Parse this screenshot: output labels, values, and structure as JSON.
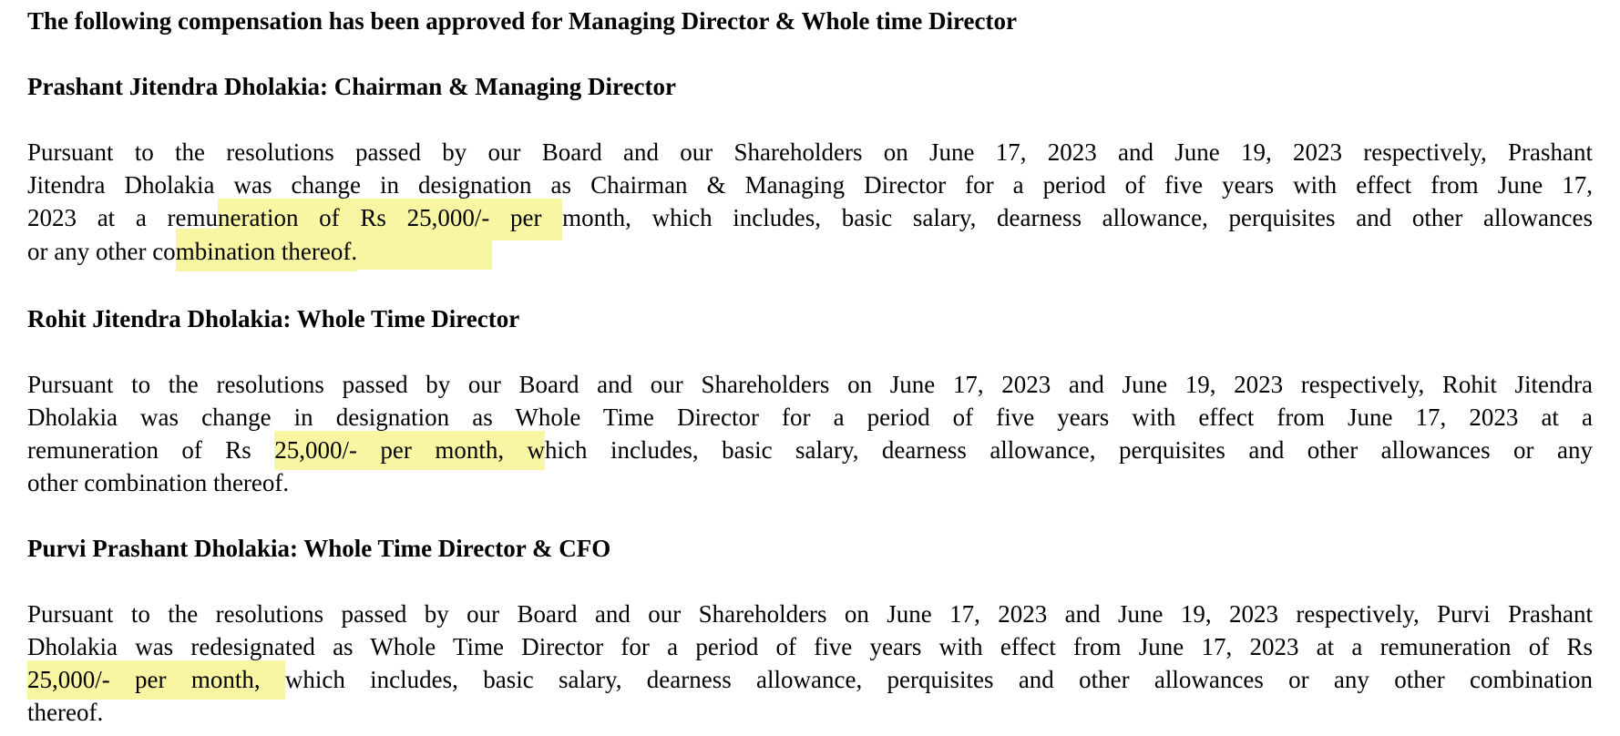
{
  "colors": {
    "page_background": "#ffffff",
    "text": "#000000",
    "highlight": "#f9f6a3"
  },
  "document": {
    "main_heading": "The following compensation has been approved for Managing Director & Whole time Director",
    "sections": [
      {
        "heading": "Prashant Jitendra Dholakia: Chairman & Managing Director",
        "lines": [
          {
            "pre": "Pursuant to the resolutions passed by our Board and our Shareholders on June 17, 2023 and June 19, 2023 respectively, Prashant",
            "mark": "",
            "post": ""
          },
          {
            "pre": "Jitendra Dholakia was change in designation as Chairman & Managing Director for a period of five years with effect from June 17,",
            "mark": "",
            "post": ""
          },
          {
            "pre": "2023 at a remu",
            "mark": "neration of Rs 25,000/- per ",
            "post": "month, which includes, basic salary, dearness allowance, perquisites and other allowances"
          },
          {
            "pre": "or any other co",
            "mark": "mbination thereof.",
            "post": ""
          }
        ]
      },
      {
        "heading": "Rohit Jitendra Dholakia: Whole Time Director",
        "lines": [
          {
            "pre": "Pursuant to the resolutions passed by our Board and our Shareholders on June 17, 2023 and June 19, 2023 respectively, Rohit Jitendra",
            "mark": "",
            "post": ""
          },
          {
            "pre": "Dholakia was change in designation as Whole Time Director for a period of five years with effect from June 17, 2023 at a",
            "mark": "",
            "post": ""
          },
          {
            "pre": "remuneration of Rs ",
            "mark": "25,000/- per month, w",
            "post": "hich includes, basic salary, dearness allowance, perquisites and other allowances or any"
          },
          {
            "pre": "other combination thereof.",
            "mark": "",
            "post": ""
          }
        ]
      },
      {
        "heading": "Purvi Prashant Dholakia: Whole Time Director & CFO",
        "lines": [
          {
            "pre": "Pursuant to the resolutions passed by our Board and our Shareholders on June 17, 2023 and June 19, 2023 respectively, Purvi Prashant",
            "mark": "",
            "post": ""
          },
          {
            "pre": "Dholakia was redesignated as Whole Time Director for a period of five years with effect from June 17, 2023 at a remuneration of Rs",
            "mark": "",
            "post": ""
          },
          {
            "pre": "",
            "mark": "25,000/- per month, ",
            "post": "which includes, basic salary, dearness allowance, perquisites and other allowances or any other combination"
          },
          {
            "pre": "thereof.",
            "mark": "",
            "post": ""
          }
        ]
      }
    ]
  }
}
